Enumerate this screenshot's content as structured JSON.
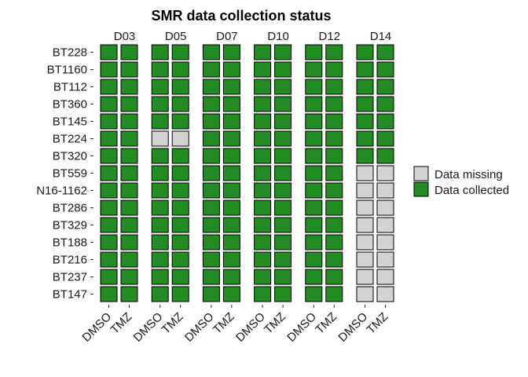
{
  "chart_data": {
    "type": "heatmap",
    "title": "SMR data collection status",
    "facets": [
      "D03",
      "D05",
      "D07",
      "D10",
      "D12",
      "D14"
    ],
    "x_categories": [
      "DMSO",
      "TMZ"
    ],
    "y_categories": [
      "BT228",
      "BT1160",
      "BT112",
      "BT360",
      "BT145",
      "BT224",
      "BT320",
      "BT559",
      "N16-1162",
      "BT286",
      "BT329",
      "BT188",
      "BT216",
      "BT237",
      "BT147"
    ],
    "values": {
      "D03": [
        [
          1,
          1
        ],
        [
          1,
          1
        ],
        [
          1,
          1
        ],
        [
          1,
          1
        ],
        [
          1,
          1
        ],
        [
          1,
          1
        ],
        [
          1,
          1
        ],
        [
          1,
          1
        ],
        [
          1,
          1
        ],
        [
          1,
          1
        ],
        [
          1,
          1
        ],
        [
          1,
          1
        ],
        [
          1,
          1
        ],
        [
          1,
          1
        ],
        [
          1,
          1
        ]
      ],
      "D05": [
        [
          1,
          1
        ],
        [
          1,
          1
        ],
        [
          1,
          1
        ],
        [
          1,
          1
        ],
        [
          1,
          1
        ],
        [
          0,
          0
        ],
        [
          1,
          1
        ],
        [
          1,
          1
        ],
        [
          1,
          1
        ],
        [
          1,
          1
        ],
        [
          1,
          1
        ],
        [
          1,
          1
        ],
        [
          1,
          1
        ],
        [
          1,
          1
        ],
        [
          1,
          1
        ]
      ],
      "D07": [
        [
          1,
          1
        ],
        [
          1,
          1
        ],
        [
          1,
          1
        ],
        [
          1,
          1
        ],
        [
          1,
          1
        ],
        [
          1,
          1
        ],
        [
          1,
          1
        ],
        [
          1,
          1
        ],
        [
          1,
          1
        ],
        [
          1,
          1
        ],
        [
          1,
          1
        ],
        [
          1,
          1
        ],
        [
          1,
          1
        ],
        [
          1,
          1
        ],
        [
          1,
          1
        ]
      ],
      "D10": [
        [
          1,
          1
        ],
        [
          1,
          1
        ],
        [
          1,
          1
        ],
        [
          1,
          1
        ],
        [
          1,
          1
        ],
        [
          1,
          1
        ],
        [
          1,
          1
        ],
        [
          1,
          1
        ],
        [
          1,
          1
        ],
        [
          1,
          1
        ],
        [
          1,
          1
        ],
        [
          1,
          1
        ],
        [
          1,
          1
        ],
        [
          1,
          1
        ],
        [
          1,
          1
        ]
      ],
      "D12": [
        [
          1,
          1
        ],
        [
          1,
          1
        ],
        [
          1,
          1
        ],
        [
          1,
          1
        ],
        [
          1,
          1
        ],
        [
          1,
          1
        ],
        [
          1,
          1
        ],
        [
          1,
          1
        ],
        [
          1,
          1
        ],
        [
          1,
          1
        ],
        [
          1,
          1
        ],
        [
          1,
          1
        ],
        [
          1,
          1
        ],
        [
          1,
          1
        ],
        [
          1,
          1
        ]
      ],
      "D14": [
        [
          1,
          1
        ],
        [
          1,
          1
        ],
        [
          1,
          1
        ],
        [
          1,
          1
        ],
        [
          1,
          1
        ],
        [
          1,
          1
        ],
        [
          1,
          1
        ],
        [
          0,
          0
        ],
        [
          0,
          0
        ],
        [
          0,
          0
        ],
        [
          0,
          0
        ],
        [
          0,
          0
        ],
        [
          0,
          0
        ],
        [
          0,
          0
        ],
        [
          0,
          0
        ]
      ]
    },
    "legend": [
      {
        "label": "Data missing",
        "value": 0,
        "color": "#d3d3d3"
      },
      {
        "label": "Data collected",
        "value": 1,
        "color": "#228b22"
      }
    ],
    "legend_position": "right",
    "grid": false
  }
}
